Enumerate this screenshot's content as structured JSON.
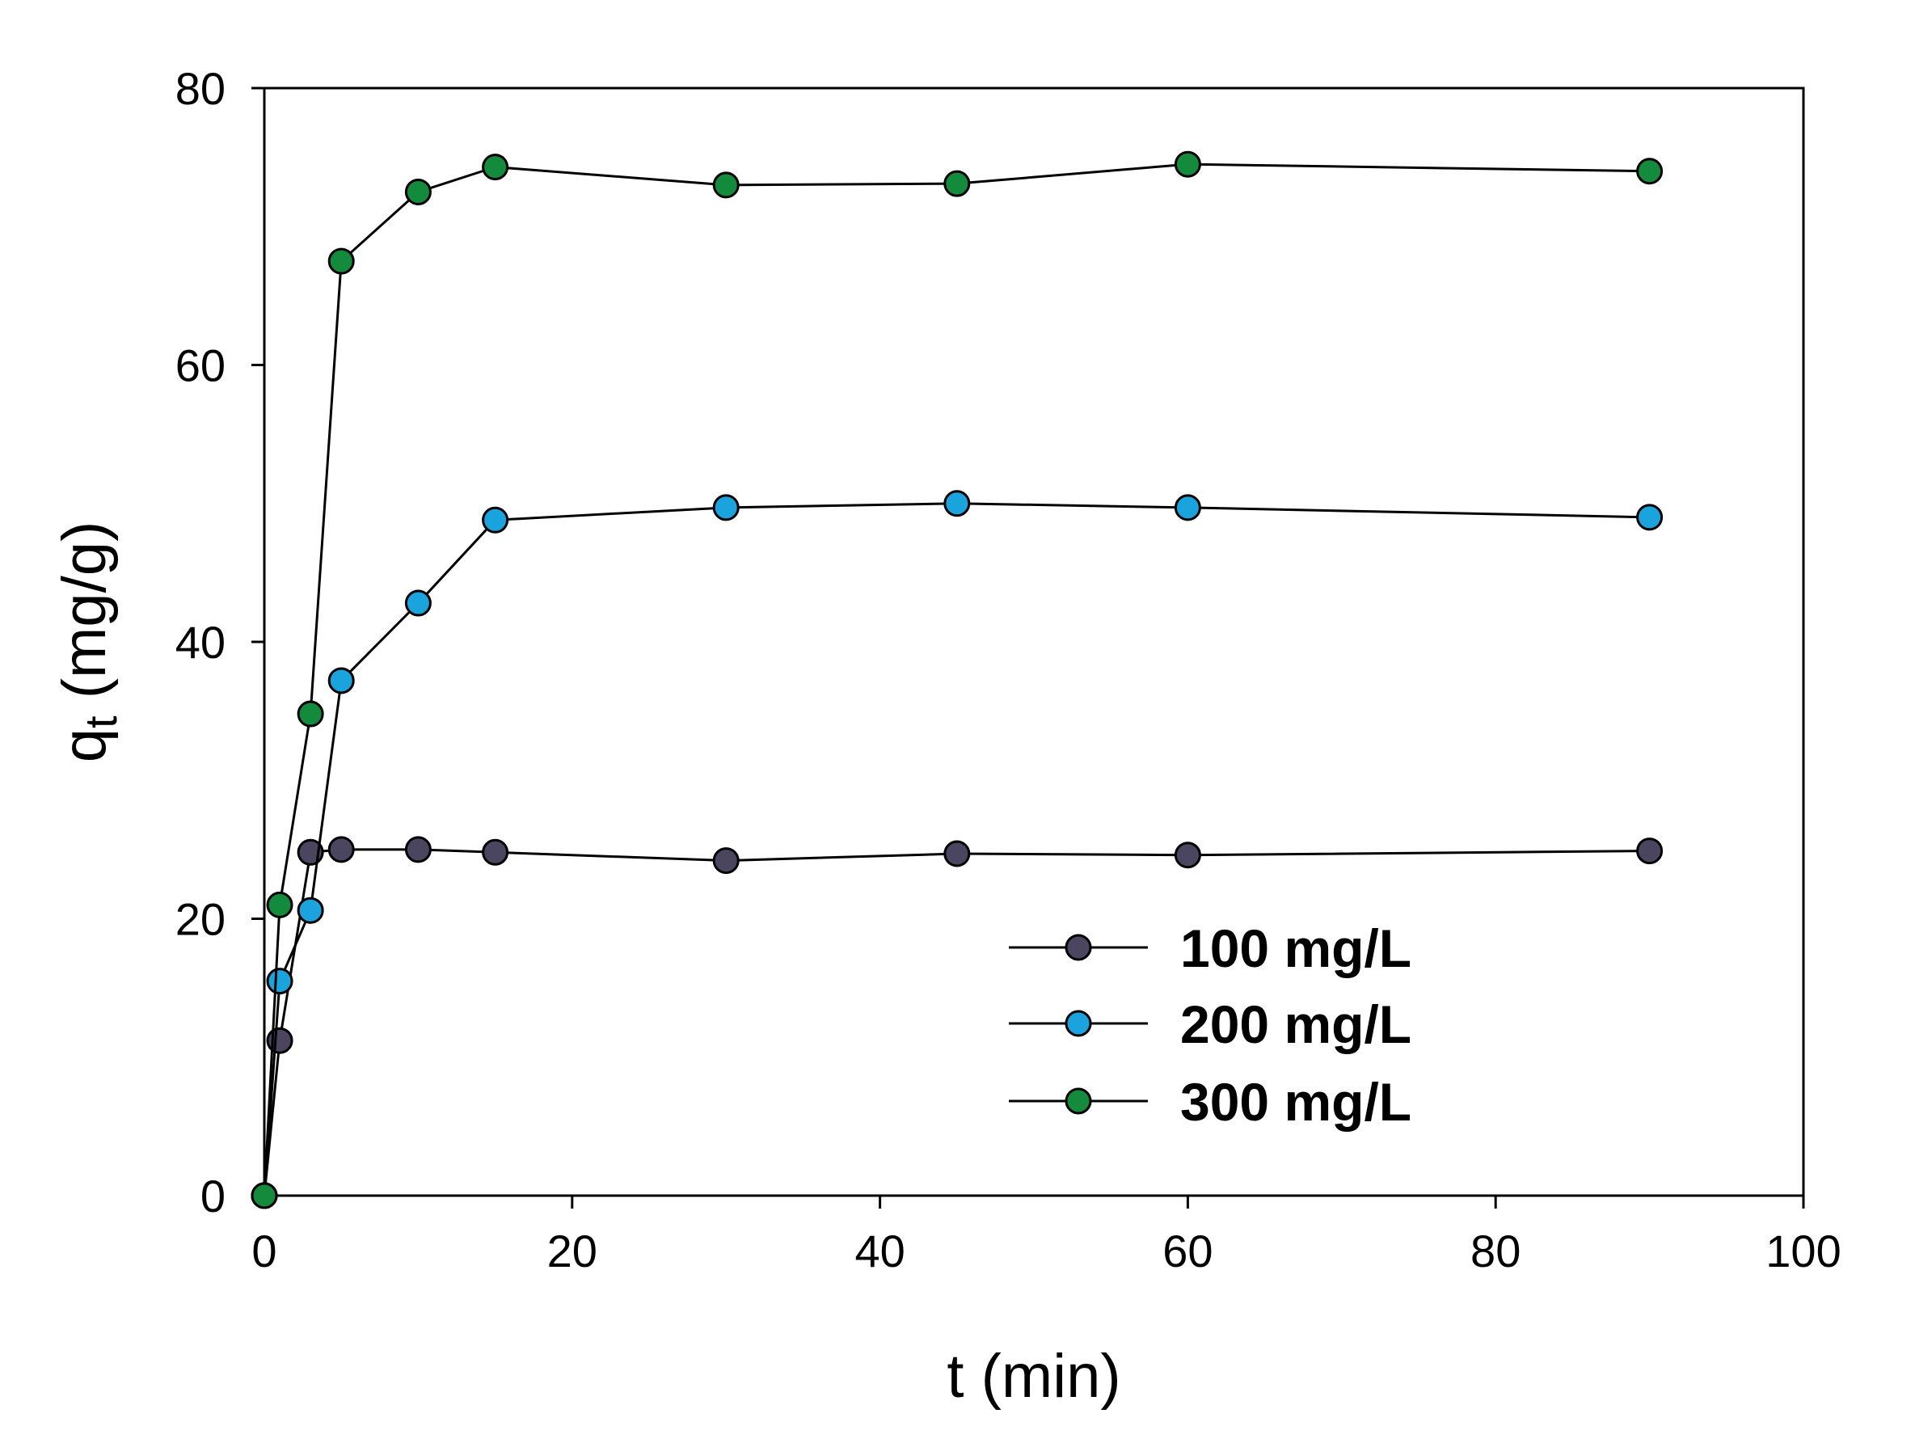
{
  "chart_data": {
    "type": "line",
    "title": "",
    "xlabel": "t (min)",
    "ylabel": {
      "main": "q",
      "sub": "t",
      "unit": " (mg/g)"
    },
    "xlim": [
      0,
      100
    ],
    "ylim": [
      0,
      80
    ],
    "xticks": [
      "0",
      "20",
      "40",
      "60",
      "80",
      "100"
    ],
    "yticks": [
      "0",
      "20",
      "40",
      "60",
      "80"
    ],
    "grid": false,
    "legend_position": "bottom-right",
    "x": [
      0,
      1,
      3,
      5,
      10,
      15,
      30,
      45,
      60,
      90
    ],
    "series": [
      {
        "name": "100 mg/L",
        "color": "#4b4560",
        "values": [
          0,
          11.2,
          24.8,
          25,
          25,
          24.8,
          24.2,
          24.7,
          24.6,
          24.9
        ]
      },
      {
        "name": "200 mg/L",
        "color": "#1aa3dc",
        "values": [
          0,
          15.5,
          20.6,
          37.2,
          42.8,
          48.8,
          49.7,
          50,
          49.7,
          49
        ]
      },
      {
        "name": "300 mg/L",
        "color": "#138a3c",
        "values": [
          0,
          21,
          34.8,
          67.5,
          72.5,
          74.3,
          73,
          73.1,
          74.5,
          74
        ]
      }
    ]
  }
}
